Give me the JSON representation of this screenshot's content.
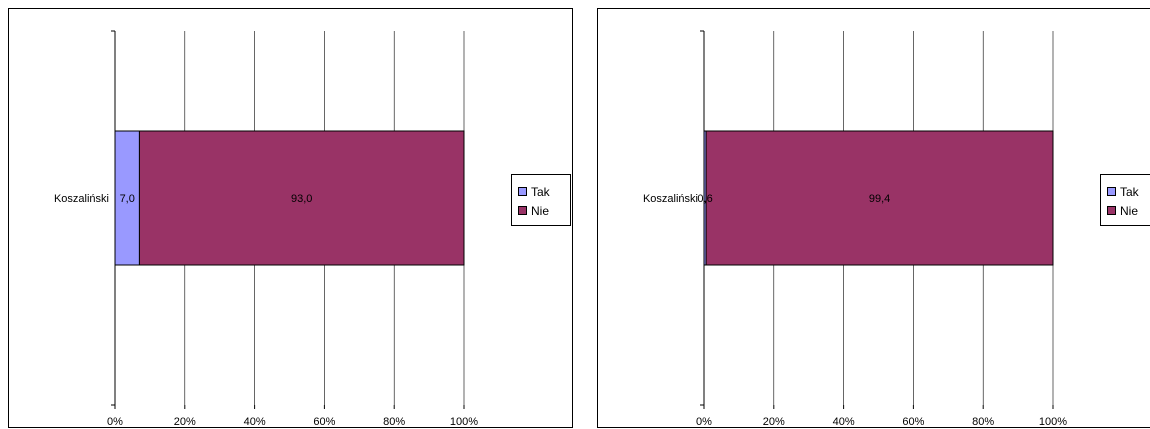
{
  "charts": [
    {
      "chart_data": {
        "type": "bar",
        "orientation": "horizontal",
        "stacked": "percent",
        "categories": [
          "Koszaliński"
        ],
        "series": [
          {
            "name": "Tak",
            "values": [
              7.0
            ],
            "color": "#9999ff",
            "label": "7,0"
          },
          {
            "name": "Nie",
            "values": [
              93.0
            ],
            "color": "#993366",
            "label": "93,0"
          }
        ],
        "xlim": [
          0,
          100
        ],
        "xticks": [
          "0%",
          "20%",
          "40%",
          "60%",
          "80%",
          "100%"
        ],
        "grid": true,
        "legend_position": "right"
      }
    },
    {
      "chart_data": {
        "type": "bar",
        "orientation": "horizontal",
        "stacked": "percent",
        "categories": [
          "Koszaliński"
        ],
        "series": [
          {
            "name": "Tak",
            "values": [
              0.6
            ],
            "color": "#9999ff",
            "label": "0,6"
          },
          {
            "name": "Nie",
            "values": [
              99.4
            ],
            "color": "#993366",
            "label": "99,4"
          }
        ],
        "xlim": [
          0,
          100
        ],
        "xticks": [
          "0%",
          "20%",
          "40%",
          "60%",
          "80%",
          "100%"
        ],
        "grid": true,
        "legend_position": "right"
      }
    }
  ]
}
